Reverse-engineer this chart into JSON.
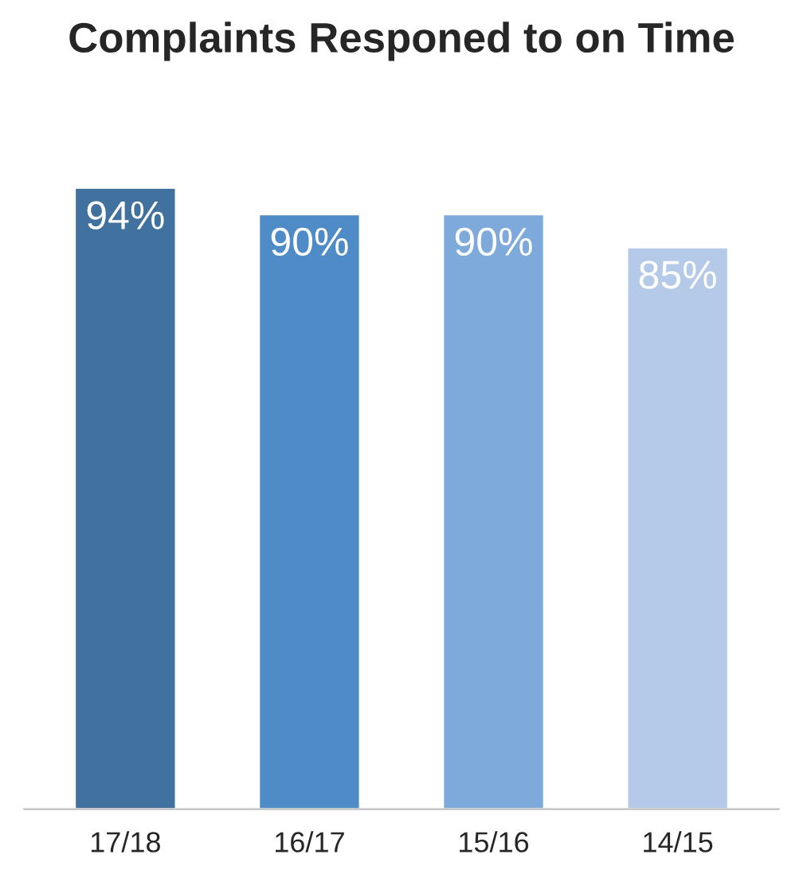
{
  "chart_data": {
    "type": "bar",
    "title": "Complaints Responed to on Time",
    "categories": [
      "17/18",
      "16/17",
      "15/16",
      "14/15"
    ],
    "values": [
      94,
      90,
      90,
      85
    ],
    "colors": [
      "#41729f",
      "#4f8bc6",
      "#7eaadb",
      "#b5cae8"
    ],
    "value_labels": [
      "94%",
      "90%",
      "90%",
      "85%"
    ],
    "tick_labels": "x",
    "grid": false,
    "legend": false
  }
}
